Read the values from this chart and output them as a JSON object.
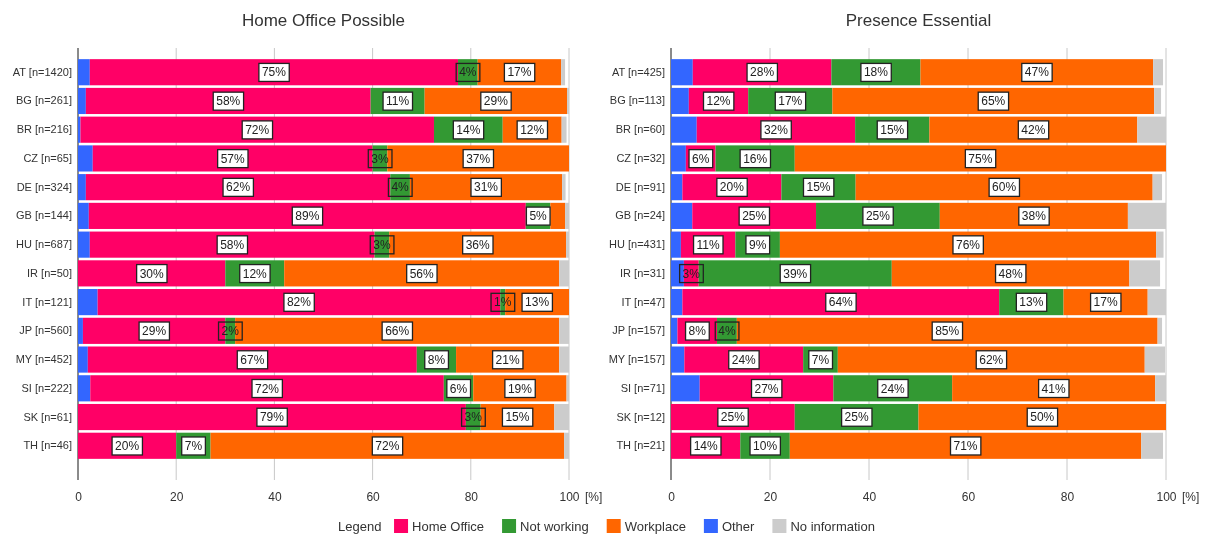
{
  "chart_data": [
    {
      "type": "bar",
      "orientation": "horizontal",
      "stacked": true,
      "title": "Home Office Possible",
      "xlabel": "[%]",
      "legend_title": "Legend",
      "legend": "bottom",
      "grid": "x",
      "xlim": [
        0,
        100
      ],
      "xticks": [
        0,
        20,
        40,
        60,
        80,
        100
      ],
      "categories": [
        "AT [n=1420]",
        "BG [n=261]",
        "BR [n=216]",
        "CZ [n=65]",
        "DE [n=324]",
        "GB [n=144]",
        "HU [n=687]",
        "IR [n=50]",
        "IT [n=121]",
        "JP [n=560]",
        "MY [n=452]",
        "SI [n=222]",
        "SK [n=61]",
        "TH [n=46]"
      ],
      "series": [
        {
          "name": "Other",
          "color": "#3366ff",
          "values": [
            2.4,
            1.6,
            0.5,
            3,
            1.6,
            2.2,
            2.4,
            0,
            4,
            1,
            2,
            2.5,
            0,
            0
          ]
        },
        {
          "name": "Home Office",
          "color": "#ff0066",
          "values": [
            75,
            58,
            72,
            57,
            62,
            89,
            58,
            30,
            82,
            29,
            67,
            72,
            79,
            20
          ],
          "value_labels": [
            "75%",
            "58%",
            "72%",
            "57%",
            "62%",
            "89%",
            "58%",
            "30%",
            "82%",
            "29%",
            "67%",
            "72%",
            "79%",
            "20%"
          ]
        },
        {
          "name": "Not working",
          "color": "#339933",
          "values": [
            4,
            11,
            14,
            3,
            4,
            5,
            3,
            12,
            1,
            2,
            8,
            6,
            3,
            7
          ],
          "value_labels": [
            "4%",
            "11%",
            "14%",
            "3%",
            "4%",
            "5%",
            "3%",
            "12%",
            "1%",
            "2%",
            "8%",
            "6%",
            "3%",
            "7%"
          ]
        },
        {
          "name": "Workplace",
          "color": "#ff6600",
          "values": [
            17,
            29,
            12,
            37,
            31,
            3,
            36,
            56,
            13,
            66,
            21,
            19,
            15,
            72
          ],
          "value_labels": [
            "17%",
            "29%",
            "12%",
            "37%",
            "31%",
            null,
            "36%",
            "56%",
            "13%",
            "66%",
            "21%",
            "19%",
            "15%",
            "72%"
          ]
        },
        {
          "name": "No information",
          "color": "#cccccc",
          "values": [
            0.8,
            0.4,
            1,
            0,
            0.7,
            0.8,
            0.6,
            2,
            0,
            2,
            2,
            0.5,
            3,
            1
          ]
        }
      ]
    },
    {
      "type": "bar",
      "orientation": "horizontal",
      "stacked": true,
      "title": "Presence Essential",
      "xlabel": "[%]",
      "grid": "x",
      "xlim": [
        0,
        100
      ],
      "xticks": [
        0,
        20,
        40,
        60,
        80,
        100
      ],
      "categories": [
        "AT [n=425]",
        "BG [n=113]",
        "BR [n=60]",
        "CZ [n=32]",
        "DE [n=91]",
        "GB [n=24]",
        "HU [n=431]",
        "IR [n=31]",
        "IT [n=47]",
        "JP [n=157]",
        "MY [n=157]",
        "SI [n=71]",
        "SK [n=12]",
        "TH [n=21]"
      ],
      "series": [
        {
          "color": "#3366ff",
          "values": [
            4.4,
            3.6,
            5.2,
            3,
            2.3,
            4.3,
            2,
            2.6,
            2.3,
            1.3,
            2.7,
            5.8,
            0,
            0
          ]
        },
        {
          "color": "#ff0066",
          "values": [
            28,
            12,
            32,
            6,
            20,
            25,
            11,
            3,
            64,
            8,
            24,
            27,
            25,
            14
          ],
          "value_labels": [
            "28%",
            "12%",
            "32%",
            "6%",
            "20%",
            "25%",
            "11%",
            "3%",
            "64%",
            "8%",
            "24%",
            "27%",
            "25%",
            "14%"
          ]
        },
        {
          "color": "#339933",
          "values": [
            18,
            17,
            15,
            16,
            15,
            25,
            9,
            39,
            13,
            4,
            7,
            24,
            25,
            10
          ],
          "value_labels": [
            "18%",
            "17%",
            "15%",
            "16%",
            "15%",
            "25%",
            "9%",
            "39%",
            "13%",
            "4%",
            "7%",
            "24%",
            "25%",
            "10%"
          ]
        },
        {
          "color": "#ff6600",
          "values": [
            47,
            65,
            42,
            75,
            60,
            38,
            76,
            48,
            17,
            85,
            62,
            41,
            50,
            71
          ],
          "value_labels": [
            "47%",
            "65%",
            "42%",
            "75%",
            "60%",
            "38%",
            "76%",
            "48%",
            "17%",
            "85%",
            "62%",
            "41%",
            "50%",
            "71%"
          ]
        },
        {
          "color": "#cccccc",
          "values": [
            2,
            1.4,
            5.8,
            0,
            1.9,
            7.7,
            1.5,
            6.2,
            3.7,
            0.9,
            4.1,
            2.2,
            0,
            4.4
          ]
        }
      ]
    }
  ]
}
